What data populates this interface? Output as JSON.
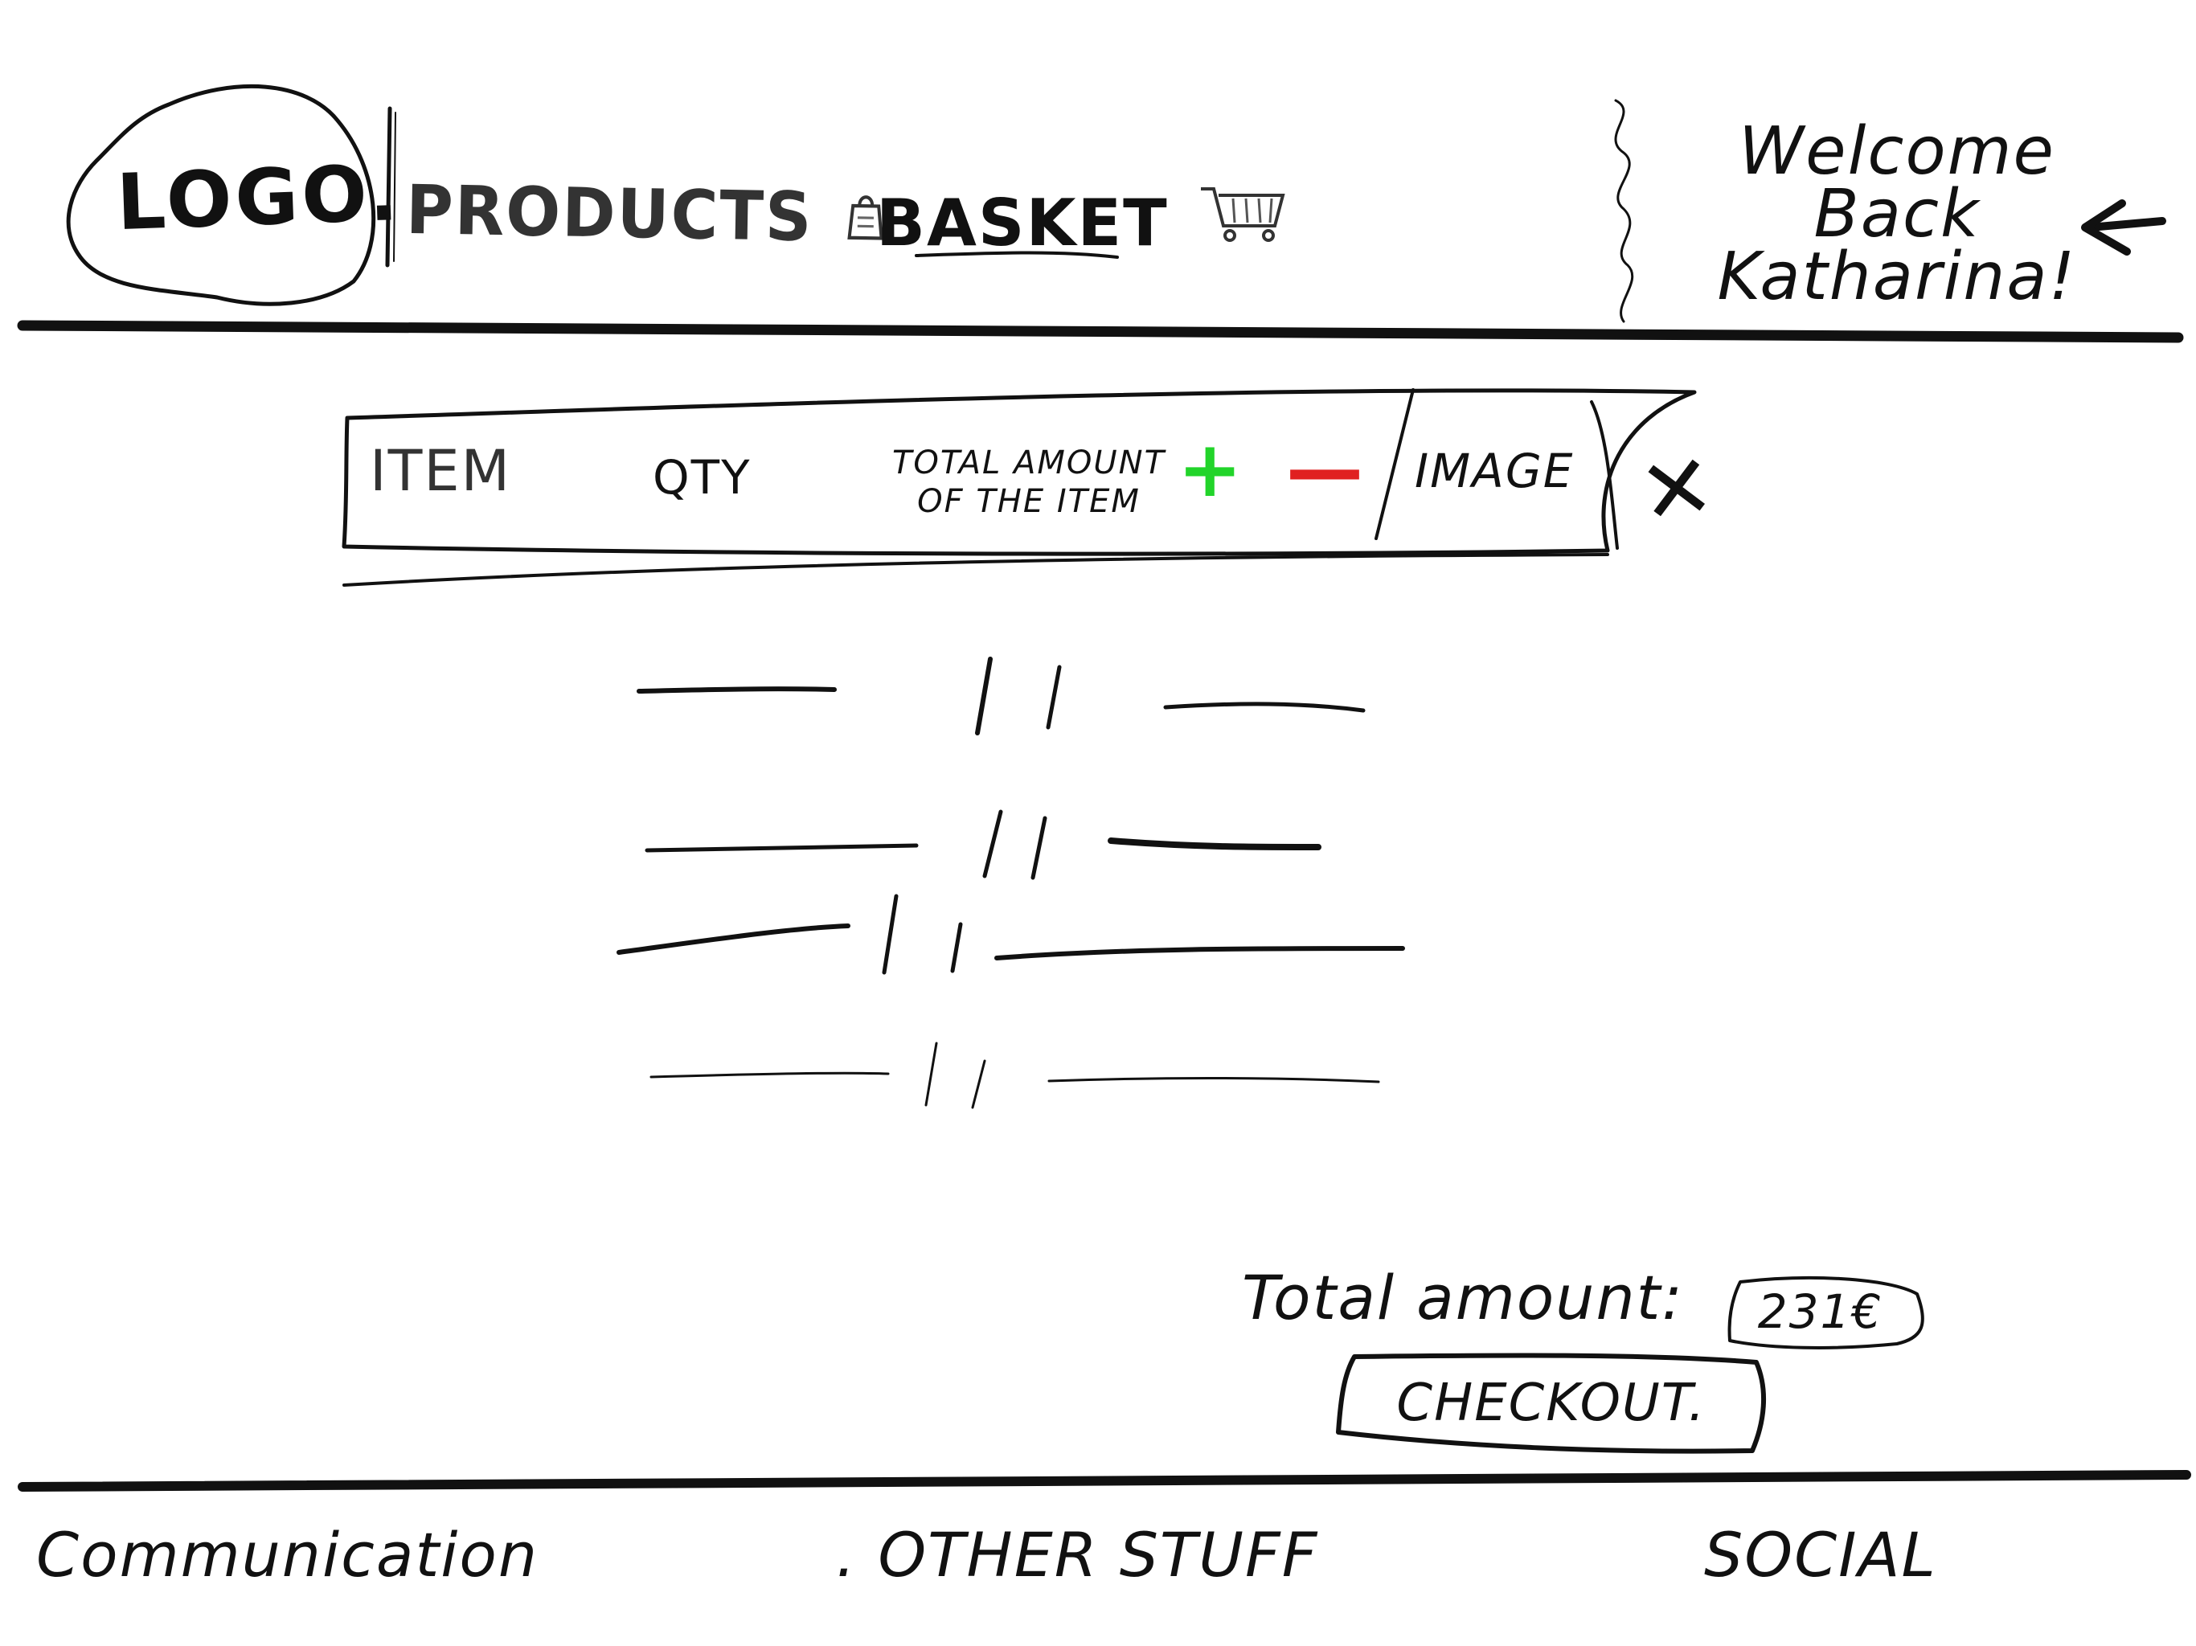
{
  "header": {
    "logo": "LOGO.",
    "nav": [
      {
        "label": "PRODUCTS",
        "icon": "bag-icon"
      },
      {
        "label": "BASKET",
        "icon": "cart-icon"
      }
    ],
    "welcome": "Welcome Back Katharina!",
    "arrow_icon": "arrow-left-icon"
  },
  "basket": {
    "columns": {
      "item": "ITEM",
      "qty": "QTY",
      "total": "TOTAL AMOUNT OF THE ITEM",
      "plus": "+",
      "minus": "—",
      "image": "IMAGE",
      "remove": "✕"
    },
    "colors": {
      "plus": "#22d42a",
      "minus": "#e02020"
    },
    "placeholder_rows": 4
  },
  "summary": {
    "total_label": "Total amount:",
    "total_value": "231€",
    "checkout_label": "CHECKOUT."
  },
  "footer": {
    "communication": "Communication",
    "other": ". OTHER STUFF",
    "social": "SOCIAL"
  }
}
